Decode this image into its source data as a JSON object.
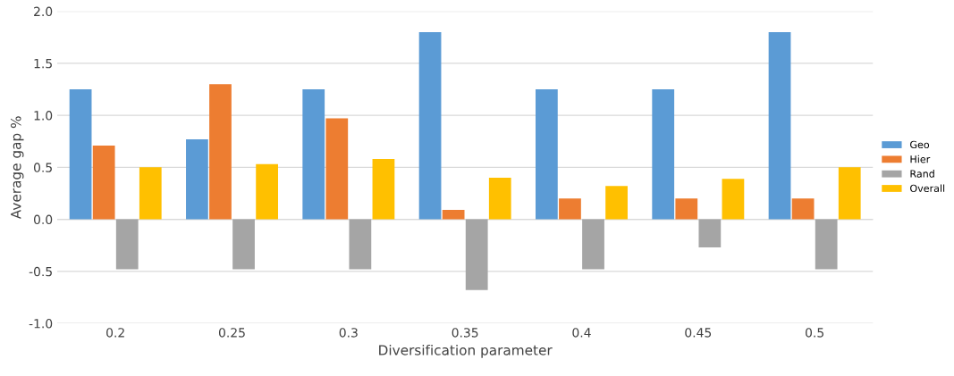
{
  "chart_data": {
    "type": "bar",
    "xlabel": "Diversification parameter",
    "ylabel": "Average gap %",
    "categories": [
      "0.2",
      "0.25",
      "0.3",
      "0.35",
      "0.4",
      "0.45",
      "0.5"
    ],
    "series": [
      {
        "name": "Geo",
        "color": "#5b9bd5",
        "values": [
          1.25,
          0.77,
          1.25,
          1.8,
          1.25,
          1.25,
          1.8
        ]
      },
      {
        "name": "Hier",
        "color": "#ed7d31",
        "values": [
          0.71,
          1.3,
          0.97,
          0.09,
          0.2,
          0.2,
          0.2
        ]
      },
      {
        "name": "Rand",
        "color": "#a5a5a5",
        "values": [
          -0.48,
          -0.48,
          -0.48,
          -0.68,
          -0.48,
          -0.27,
          -0.48
        ]
      },
      {
        "name": "Overall",
        "color": "#ffc000",
        "values": [
          0.5,
          0.53,
          0.58,
          0.4,
          0.32,
          0.39,
          0.5
        ]
      }
    ],
    "ylim": [
      -1.0,
      2.0
    ],
    "yticks": [
      {
        "value": -1.0,
        "label": "-1.0"
      },
      {
        "value": -0.5,
        "label": "-0.5"
      },
      {
        "value": 0.0,
        "label": "0.0"
      },
      {
        "value": 0.5,
        "label": "0.5"
      },
      {
        "value": 1.0,
        "label": "1.0"
      },
      {
        "value": 1.5,
        "label": "1.5"
      },
      {
        "value": 2.0,
        "label": "2.0"
      }
    ],
    "grid": "y",
    "legend": "right"
  }
}
